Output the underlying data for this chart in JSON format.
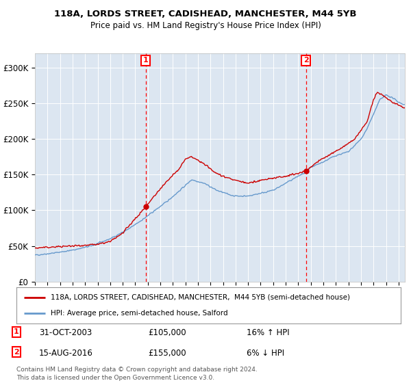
{
  "title1": "118A, LORDS STREET, CADISHEAD, MANCHESTER, M44 5YB",
  "title2": "Price paid vs. HM Land Registry's House Price Index (HPI)",
  "legend_line1": "118A, LORDS STREET, CADISHEAD, MANCHESTER,  M44 5YB (semi-detached house)",
  "legend_line2": "HPI: Average price, semi-detached house, Salford",
  "annotation1_date": "31-OCT-2003",
  "annotation1_price": "£105,000",
  "annotation1_hpi": "16% ↑ HPI",
  "annotation2_date": "15-AUG-2016",
  "annotation2_price": "£155,000",
  "annotation2_hpi": "6% ↓ HPI",
  "footnote1": "Contains HM Land Registry data © Crown copyright and database right 2024.",
  "footnote2": "This data is licensed under the Open Government Licence v3.0.",
  "property_color": "#cc0000",
  "hpi_color": "#6699cc",
  "background_color": "#dce6f1",
  "ylim": [
    0,
    320000
  ],
  "yticks": [
    0,
    50000,
    100000,
    150000,
    200000,
    250000,
    300000
  ],
  "ytick_labels": [
    "£0",
    "£50K",
    "£100K",
    "£150K",
    "£200K",
    "£250K",
    "£300K"
  ],
  "sale1_x": 2003.83,
  "sale1_y": 105000,
  "sale2_x": 2016.62,
  "sale2_y": 155000,
  "xmin": 1995.0,
  "xmax": 2024.5
}
